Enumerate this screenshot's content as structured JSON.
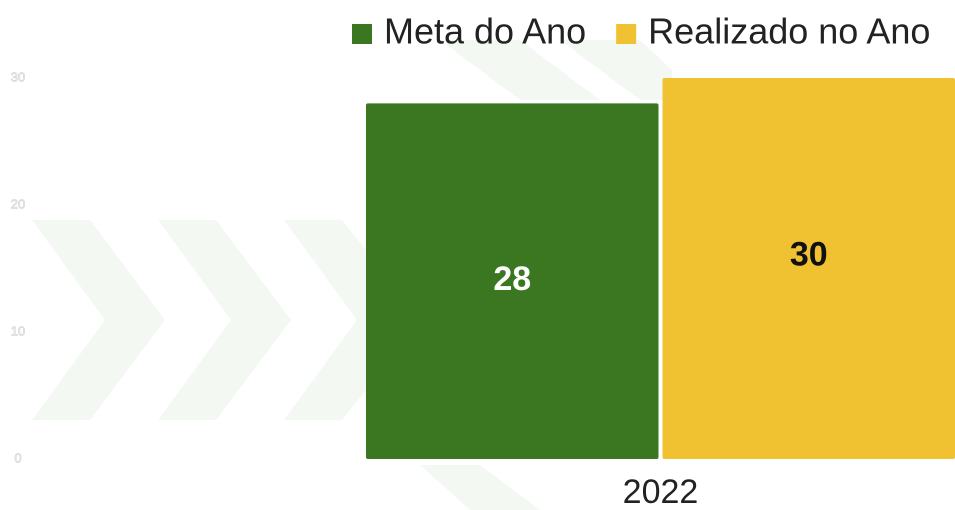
{
  "chart_data": {
    "type": "bar",
    "categories": [
      "2022"
    ],
    "series": [
      {
        "name": "Meta do Ano",
        "color": "#3a7720",
        "values": [
          28
        ]
      },
      {
        "name": "Realizado no Ano",
        "color": "#f0c232",
        "values": [
          30
        ]
      }
    ],
    "ylim": [
      0,
      30
    ],
    "yticks": [
      0,
      10,
      20,
      30
    ],
    "grid": false
  }
}
